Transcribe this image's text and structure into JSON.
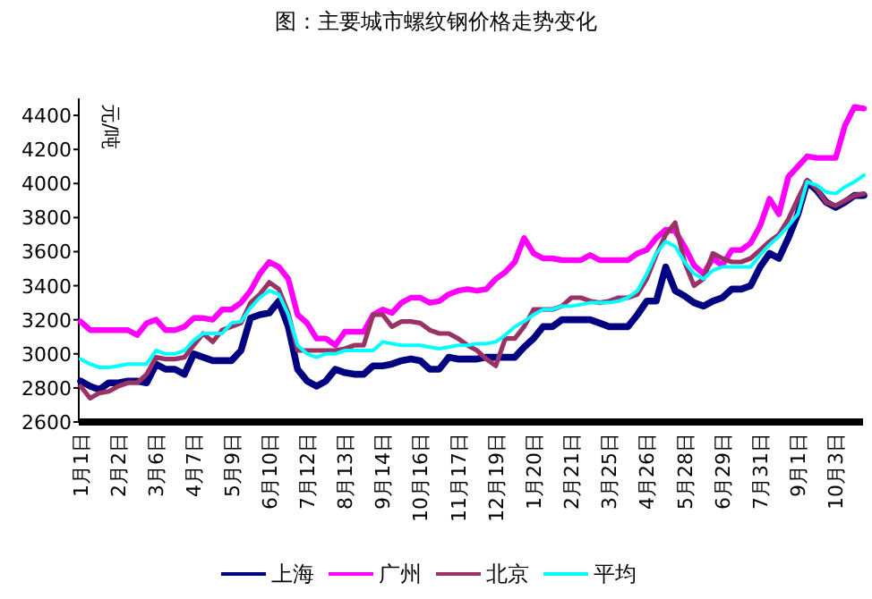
{
  "chart_data": {
    "type": "line",
    "title": "图：主要城市螺纹钢价格走势变化",
    "ylabel": "元/吨",
    "categories": [
      "1月1日",
      null,
      null,
      null,
      "2月2日",
      null,
      null,
      null,
      "3月6日",
      null,
      null,
      null,
      "4月7日",
      null,
      null,
      null,
      "5月9日",
      null,
      null,
      null,
      "6月10日",
      null,
      null,
      null,
      "7月12日",
      null,
      null,
      null,
      "8月13日",
      null,
      null,
      null,
      "9月14日",
      null,
      null,
      null,
      "10月16日",
      null,
      null,
      null,
      "11月17日",
      null,
      null,
      null,
      "12月19日",
      null,
      null,
      null,
      "1月20日",
      null,
      null,
      null,
      "2月21日",
      null,
      null,
      null,
      "3月25日",
      null,
      null,
      null,
      "4月26日",
      null,
      null,
      null,
      "5月28日",
      null,
      null,
      null,
      "6月29日",
      null,
      null,
      null,
      "7月31日",
      null,
      null,
      null,
      "9月1日",
      null,
      null,
      null,
      "10月3日",
      null,
      null,
      null
    ],
    "series": [
      {
        "name": "上海",
        "color": "#000080",
        "values": [
          2840,
          2810,
          2790,
          2830,
          2830,
          2840,
          2840,
          2830,
          2940,
          2910,
          2910,
          2880,
          3000,
          2980,
          2960,
          2960,
          2960,
          3020,
          3210,
          3230,
          3240,
          3310,
          3160,
          2910,
          2840,
          2810,
          2840,
          2910,
          2890,
          2880,
          2880,
          2930,
          2930,
          2940,
          2960,
          2970,
          2960,
          2910,
          2910,
          2980,
          2970,
          2970,
          2970,
          2980,
          2980,
          2980,
          2980,
          3040,
          3090,
          3160,
          3160,
          3200,
          3200,
          3200,
          3200,
          3180,
          3160,
          3160,
          3160,
          3230,
          3310,
          3310,
          3510,
          3370,
          3340,
          3300,
          3280,
          3310,
          3330,
          3380,
          3380,
          3400,
          3510,
          3590,
          3560,
          3680,
          3820,
          4010,
          3960,
          3890,
          3860,
          3890,
          3930,
          3930
        ]
      },
      {
        "name": "广州",
        "color": "#ff00ff",
        "values": [
          3190,
          3140,
          3140,
          3140,
          3140,
          3140,
          3110,
          3180,
          3200,
          3140,
          3140,
          3160,
          3210,
          3210,
          3200,
          3260,
          3260,
          3300,
          3370,
          3470,
          3540,
          3510,
          3440,
          3230,
          3180,
          3090,
          3090,
          3050,
          3130,
          3130,
          3130,
          3230,
          3260,
          3240,
          3300,
          3330,
          3330,
          3300,
          3310,
          3350,
          3370,
          3380,
          3370,
          3380,
          3440,
          3480,
          3540,
          3680,
          3590,
          3560,
          3560,
          3550,
          3550,
          3550,
          3580,
          3550,
          3550,
          3550,
          3550,
          3590,
          3610,
          3680,
          3730,
          3720,
          3630,
          3520,
          3470,
          3560,
          3520,
          3610,
          3610,
          3650,
          3750,
          3910,
          3820,
          4040,
          4100,
          4160,
          4150,
          4150,
          4150,
          4340,
          4450,
          4440
        ]
      },
      {
        "name": "北京",
        "color": "#993366",
        "values": [
          2810,
          2740,
          2770,
          2780,
          2810,
          2830,
          2830,
          2880,
          2980,
          2970,
          2970,
          2980,
          3050,
          3120,
          3070,
          3140,
          3160,
          3180,
          3300,
          3350,
          3420,
          3380,
          3240,
          3020,
          3020,
          3020,
          3020,
          3020,
          3030,
          3050,
          3050,
          3230,
          3230,
          3160,
          3190,
          3190,
          3180,
          3140,
          3120,
          3120,
          3090,
          3050,
          3020,
          2970,
          2930,
          3090,
          3090,
          3160,
          3260,
          3260,
          3260,
          3280,
          3330,
          3330,
          3310,
          3300,
          3310,
          3330,
          3330,
          3350,
          3440,
          3580,
          3700,
          3770,
          3540,
          3400,
          3440,
          3590,
          3560,
          3540,
          3540,
          3560,
          3610,
          3660,
          3700,
          3790,
          3910,
          4020,
          3970,
          3890,
          3870,
          3900,
          3930,
          3940
        ]
      },
      {
        "name": "平均",
        "color": "#00ffff",
        "values": [
          2970,
          2940,
          2920,
          2920,
          2930,
          2940,
          2940,
          2940,
          3020,
          3000,
          3000,
          3020,
          3080,
          3120,
          3120,
          3120,
          3180,
          3190,
          3270,
          3330,
          3370,
          3350,
          3230,
          3050,
          3000,
          2980,
          3000,
          3000,
          3020,
          3020,
          3020,
          3020,
          3070,
          3060,
          3050,
          3050,
          3050,
          3040,
          3030,
          3040,
          3050,
          3050,
          3060,
          3060,
          3070,
          3110,
          3160,
          3190,
          3230,
          3260,
          3260,
          3280,
          3280,
          3290,
          3300,
          3300,
          3300,
          3310,
          3330,
          3370,
          3470,
          3590,
          3660,
          3630,
          3540,
          3470,
          3440,
          3490,
          3510,
          3510,
          3510,
          3510,
          3580,
          3640,
          3690,
          3750,
          3820,
          4010,
          3990,
          3950,
          3940,
          3980,
          4010,
          4050
        ]
      }
    ],
    "ylim": [
      2600,
      4500
    ],
    "yticks": [
      2600,
      2800,
      3000,
      3200,
      3400,
      3600,
      3800,
      4000,
      4200,
      4400
    ],
    "legend": "bottom",
    "grid": false
  }
}
